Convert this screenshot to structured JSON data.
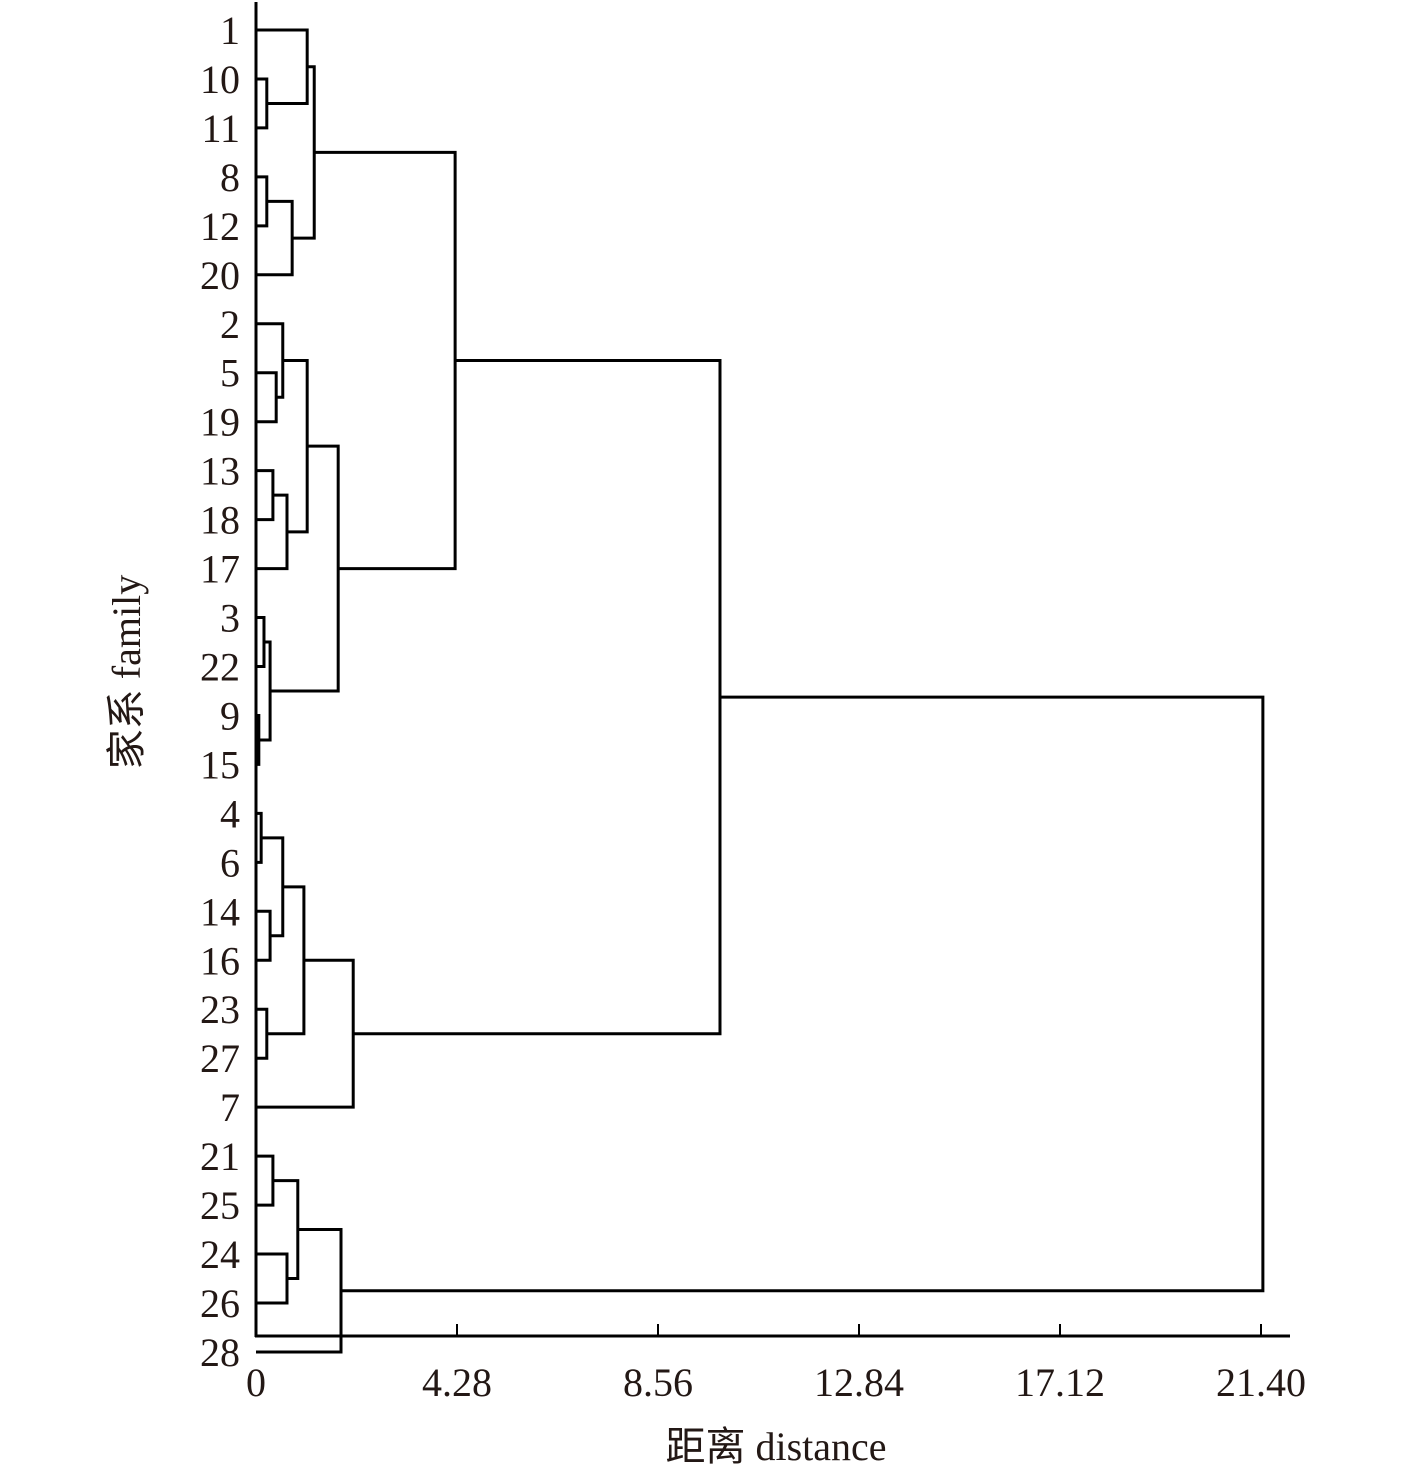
{
  "chart_data": {
    "type": "dendrogram",
    "xlabel": "距离 distance",
    "ylabel": "家系 family",
    "xlim": [
      0,
      21.4
    ],
    "xticks": [
      "0",
      "4.28",
      "8.56",
      "12.84",
      "17.12",
      "21.40"
    ],
    "xtick_values": [
      0,
      4.28,
      8.56,
      12.84,
      17.12,
      21.4
    ],
    "leaves": [
      "1",
      "10",
      "11",
      "8",
      "12",
      "20",
      "2",
      "5",
      "19",
      "13",
      "18",
      "17",
      "3",
      "22",
      "9",
      "15",
      "4",
      "6",
      "14",
      "16",
      "23",
      "27",
      "7",
      "21",
      "25",
      "24",
      "26",
      "28"
    ],
    "tree": {
      "h": 21.44,
      "c": [
        {
          "h": 9.88,
          "c": [
            {
              "h": 4.24,
              "c": [
                {
                  "h": 1.24,
                  "c": [
                    {
                      "h": 1.09,
                      "c": [
                        "1",
                        {
                          "h": 0.23,
                          "c": [
                            "10",
                            "11"
                          ]
                        }
                      ]
                    },
                    {
                      "h": 0.77,
                      "c": [
                        {
                          "h": 0.23,
                          "c": [
                            "8",
                            "12"
                          ]
                        },
                        "20"
                      ]
                    }
                  ]
                },
                {
                  "h": 1.75,
                  "c": [
                    {
                      "h": 1.09,
                      "c": [
                        {
                          "h": 0.57,
                          "c": [
                            "2",
                            {
                              "h": 0.43,
                              "c": [
                                "5",
                                "19"
                              ]
                            }
                          ]
                        },
                        {
                          "h": 0.66,
                          "c": [
                            {
                              "h": 0.36,
                              "c": [
                                "13",
                                "18"
                              ]
                            },
                            "17"
                          ]
                        }
                      ]
                    },
                    {
                      "h": 0.3,
                      "c": [
                        {
                          "h": 0.17,
                          "c": [
                            "3",
                            "22"
                          ]
                        },
                        {
                          "h": 0.06,
                          "c": [
                            "9",
                            "15"
                          ]
                        }
                      ]
                    }
                  ]
                }
              ]
            },
            {
              "h": 2.07,
              "c": [
                {
                  "h": 1.02,
                  "c": [
                    {
                      "h": 0.57,
                      "c": [
                        {
                          "h": 0.11,
                          "c": [
                            "4",
                            "6"
                          ]
                        },
                        {
                          "h": 0.3,
                          "c": [
                            "14",
                            "16"
                          ]
                        }
                      ]
                    },
                    {
                      "h": 0.23,
                      "c": [
                        "23",
                        "27"
                      ]
                    }
                  ]
                },
                "7"
              ]
            }
          ]
        },
        {
          "h": 1.81,
          "c": [
            {
              "h": 0.89,
              "c": [
                {
                  "h": 0.36,
                  "c": [
                    "21",
                    "25"
                  ]
                },
                {
                  "h": 0.66,
                  "c": [
                    "24",
                    "26"
                  ]
                }
              ]
            },
            "28"
          ]
        }
      ]
    }
  }
}
